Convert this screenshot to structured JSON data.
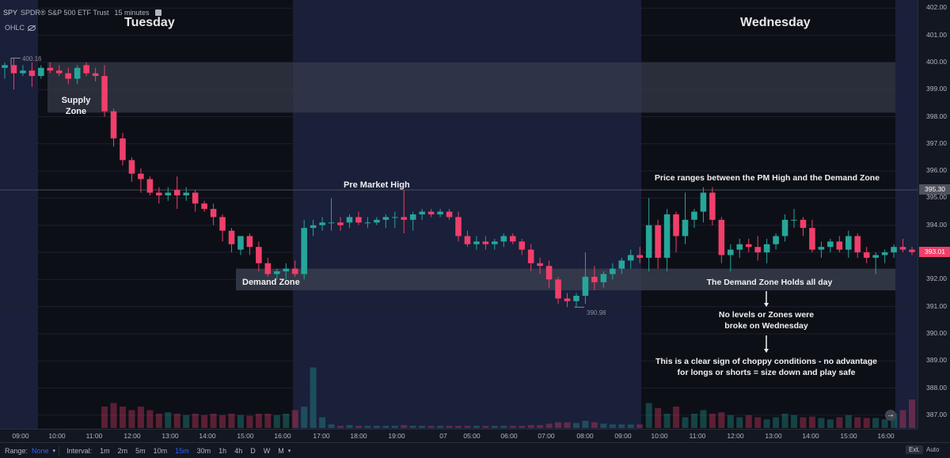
{
  "header": {
    "symbol": "SPY",
    "description": "SPDR® S&P 500 ETF Trust",
    "interval": "15 minutes",
    "ohlc_label": "OHLC"
  },
  "days": {
    "tuesday": "Tuesday",
    "wednesday": "Wednesday"
  },
  "annotations": {
    "supply_zone": "Supply\nZone",
    "demand_zone": "Demand Zone",
    "pm_high": "Pre Market High",
    "price_ranges": "Price ranges between the PM High and the Demand Zone",
    "demand_holds": "The Demand Zone Holds all day",
    "no_levels": "No levels or Zones were\nbroke on Wednesday",
    "choppy": "This is a clear sign of choppy conditions - no advantage\nfor longs or shorts = size down and play safe"
  },
  "markers": {
    "high": "400.16",
    "low": "390.98"
  },
  "price_axis": {
    "ticks": [
      "402.00",
      "401.00",
      "400.00",
      "399.00",
      "398.00",
      "397.00",
      "396.00",
      "395.00",
      "394.00",
      "393.00",
      "392.00",
      "391.00",
      "390.00",
      "389.00",
      "388.00",
      "387.00"
    ],
    "hline_label": "395.30",
    "last_price": "393.01"
  },
  "time_axis": {
    "ticks": [
      "09:00",
      "10:00",
      "11:00",
      "12:00",
      "13:00",
      "14:00",
      "15:00",
      "16:00",
      "17:00",
      "18:00",
      "19:00",
      "07",
      "05:00",
      "06:00",
      "07:00",
      "08:00",
      "09:00",
      "10:00",
      "11:00",
      "12:00",
      "13:00",
      "14:00",
      "15:00",
      "16:00"
    ]
  },
  "toolbar": {
    "range_label": "Range:",
    "range_value": "None",
    "interval_label": "Interval:",
    "intervals": [
      "1m",
      "2m",
      "5m",
      "10m",
      "15m",
      "30m",
      "1h",
      "4h",
      "D",
      "W",
      "M"
    ],
    "active_interval": "15m",
    "ext_label": "Ext.",
    "auto_label": "Auto"
  },
  "colors": {
    "up": "#26a69a",
    "down": "#ef3f6a",
    "session_bg": "#1a1f3a",
    "zone": "#3a3f4f",
    "last_price_badge": "#ef3f6a"
  },
  "chart_data": {
    "type": "candlestick",
    "ylim": [
      386.5,
      402.3
    ],
    "candles": [
      [
        399.8,
        400.0,
        399.4,
        399.9
      ],
      [
        399.9,
        400.16,
        399.0,
        399.6
      ],
      [
        399.6,
        399.9,
        399.5,
        399.7
      ],
      [
        399.7,
        400.0,
        399.1,
        399.5
      ],
      [
        399.5,
        399.9,
        399.4,
        399.8
      ],
      [
        399.8,
        400.0,
        399.6,
        399.7
      ],
      [
        399.7,
        399.9,
        399.5,
        399.6
      ],
      [
        399.6,
        399.8,
        399.2,
        399.4
      ],
      [
        399.4,
        399.9,
        399.2,
        399.8
      ],
      [
        399.9,
        400.0,
        399.5,
        399.6
      ],
      [
        399.6,
        399.8,
        399.3,
        399.5
      ],
      [
        399.5,
        399.9,
        398.0,
        398.2
      ],
      [
        398.2,
        398.3,
        396.9,
        397.2
      ],
      [
        397.2,
        397.4,
        396.2,
        396.4
      ],
      [
        396.4,
        396.5,
        395.6,
        395.9
      ],
      [
        395.9,
        396.1,
        395.2,
        395.7
      ],
      [
        395.7,
        395.8,
        395.1,
        395.2
      ],
      [
        395.2,
        395.4,
        394.8,
        395.1
      ],
      [
        395.1,
        395.4,
        394.9,
        395.2
      ],
      [
        395.3,
        395.8,
        394.6,
        395.1
      ],
      [
        395.1,
        395.4,
        394.9,
        395.2
      ],
      [
        395.2,
        395.3,
        394.5,
        394.8
      ],
      [
        394.8,
        394.9,
        394.5,
        394.6
      ],
      [
        394.6,
        394.8,
        394.0,
        394.3
      ],
      [
        394.3,
        394.4,
        393.4,
        393.8
      ],
      [
        393.8,
        393.9,
        393.0,
        393.3
      ],
      [
        393.1,
        393.6,
        392.9,
        393.6
      ],
      [
        393.6,
        393.7,
        392.9,
        393.2
      ],
      [
        393.2,
        393.4,
        392.3,
        392.6
      ],
      [
        392.6,
        392.8,
        392.1,
        392.2
      ],
      [
        392.2,
        392.4,
        392.0,
        392.3
      ],
      [
        392.3,
        392.6,
        392.0,
        392.4
      ],
      [
        392.4,
        392.7,
        392.1,
        392.2
      ],
      [
        392.2,
        394.2,
        392.0,
        393.9
      ],
      [
        393.9,
        394.2,
        393.6,
        394.0
      ],
      [
        394.0,
        394.3,
        393.8,
        394.1
      ],
      [
        394.1,
        395.0,
        393.8,
        394.1
      ],
      [
        394.1,
        394.3,
        393.8,
        394.0
      ],
      [
        394.1,
        394.4,
        393.9,
        394.3
      ],
      [
        394.3,
        394.5,
        394.0,
        394.1
      ],
      [
        394.1,
        394.3,
        393.9,
        394.1
      ],
      [
        394.1,
        394.3,
        394.0,
        394.2
      ],
      [
        394.2,
        394.4,
        393.9,
        394.3
      ],
      [
        394.3,
        394.5,
        393.9,
        394.3
      ],
      [
        394.3,
        395.3,
        393.7,
        394.2
      ],
      [
        394.2,
        394.5,
        393.8,
        394.4
      ],
      [
        394.4,
        394.6,
        394.2,
        394.5
      ],
      [
        394.5,
        394.6,
        394.3,
        394.4
      ],
      [
        394.4,
        394.6,
        394.3,
        394.5
      ],
      [
        394.5,
        394.6,
        394.2,
        394.3
      ],
      [
        394.3,
        394.5,
        393.4,
        393.6
      ],
      [
        393.6,
        393.8,
        393.2,
        393.3
      ],
      [
        393.3,
        393.6,
        393.1,
        393.4
      ],
      [
        393.4,
        393.6,
        393.1,
        393.3
      ],
      [
        393.3,
        393.5,
        393.1,
        393.4
      ],
      [
        393.4,
        393.7,
        393.2,
        393.6
      ],
      [
        393.6,
        393.7,
        393.3,
        393.4
      ],
      [
        393.4,
        393.5,
        392.9,
        393.1
      ],
      [
        393.1,
        393.3,
        392.3,
        392.6
      ],
      [
        392.6,
        392.8,
        392.2,
        392.5
      ],
      [
        392.5,
        392.7,
        391.7,
        392.0
      ],
      [
        392.0,
        392.1,
        391.1,
        391.3
      ],
      [
        391.3,
        391.5,
        390.98,
        391.2
      ],
      [
        391.2,
        391.5,
        391.0,
        391.4
      ],
      [
        391.4,
        393.0,
        391.1,
        392.1
      ],
      [
        392.1,
        392.5,
        391.6,
        391.9
      ],
      [
        391.9,
        392.3,
        391.7,
        392.2
      ],
      [
        392.2,
        392.6,
        392.0,
        392.4
      ],
      [
        392.4,
        392.8,
        392.2,
        392.7
      ],
      [
        392.7,
        393.1,
        392.4,
        392.9
      ],
      [
        392.9,
        393.2,
        392.6,
        392.8
      ],
      [
        392.8,
        395.0,
        392.3,
        394.0
      ],
      [
        394.0,
        394.2,
        392.4,
        392.8
      ],
      [
        392.8,
        394.6,
        392.3,
        394.4
      ],
      [
        394.4,
        394.5,
        393.0,
        393.6
      ],
      [
        393.6,
        395.2,
        393.3,
        394.2
      ],
      [
        394.2,
        394.6,
        393.9,
        394.5
      ],
      [
        394.5,
        395.4,
        394.1,
        395.2
      ],
      [
        395.2,
        395.4,
        394.0,
        394.2
      ],
      [
        394.2,
        394.3,
        392.6,
        392.9
      ],
      [
        392.9,
        393.3,
        392.3,
        393.1
      ],
      [
        393.1,
        393.5,
        392.8,
        393.3
      ],
      [
        393.3,
        393.5,
        393.0,
        393.2
      ],
      [
        393.2,
        393.6,
        392.7,
        393.0
      ],
      [
        393.0,
        393.5,
        392.6,
        393.3
      ],
      [
        393.3,
        393.7,
        393.1,
        393.6
      ],
      [
        393.6,
        394.4,
        393.4,
        394.2
      ],
      [
        394.2,
        394.6,
        393.9,
        394.2
      ],
      [
        394.2,
        394.3,
        393.6,
        393.9
      ],
      [
        393.9,
        394.2,
        393.0,
        393.1
      ],
      [
        393.1,
        393.4,
        392.8,
        393.2
      ],
      [
        393.2,
        393.5,
        393.0,
        393.4
      ],
      [
        393.4,
        393.6,
        393.0,
        393.1
      ],
      [
        393.1,
        393.8,
        392.8,
        393.6
      ],
      [
        393.6,
        393.7,
        392.8,
        393.0
      ],
      [
        393.0,
        393.2,
        392.6,
        392.8
      ],
      [
        392.8,
        393.0,
        392.2,
        392.9
      ],
      [
        392.9,
        393.1,
        392.6,
        393.0
      ],
      [
        393.0,
        393.3,
        392.8,
        393.2
      ],
      [
        393.2,
        393.5,
        393.0,
        393.1
      ],
      [
        393.1,
        393.2,
        392.9,
        393.01
      ]
    ],
    "volumes": [
      0,
      0,
      0,
      0,
      0,
      0,
      0,
      0,
      0,
      0,
      0,
      0.3,
      0.35,
      0.3,
      0.25,
      0.3,
      0.25,
      0.2,
      0.22,
      0.2,
      0.18,
      0.2,
      0.18,
      0.2,
      0.18,
      0.2,
      0.18,
      0.17,
      0.2,
      0.2,
      0.18,
      0.2,
      0.25,
      0.3,
      0.85,
      0.15,
      0.05,
      0.03,
      0.04,
      0.03,
      0.03,
      0.03,
      0.03,
      0.03,
      0.04,
      0.03,
      0.03,
      0.03,
      0.03,
      0.03,
      0.03,
      0.03,
      0.03,
      0.03,
      0.03,
      0.03,
      0.03,
      0.03,
      0.04,
      0.04,
      0.06,
      0.08,
      0.08,
      0.07,
      0.1,
      0.08,
      0.06,
      0.05,
      0.05,
      0.05,
      0.05,
      0.35,
      0.28,
      0.2,
      0.3,
      0.15,
      0.2,
      0.25,
      0.2,
      0.22,
      0.18,
      0.15,
      0.18,
      0.15,
      0.12,
      0.15,
      0.2,
      0.18,
      0.15,
      0.16,
      0.14,
      0.12,
      0.15,
      0.18,
      0.15,
      0.14,
      0.14,
      0.12,
      0.2,
      0.25,
      0.4
    ]
  }
}
